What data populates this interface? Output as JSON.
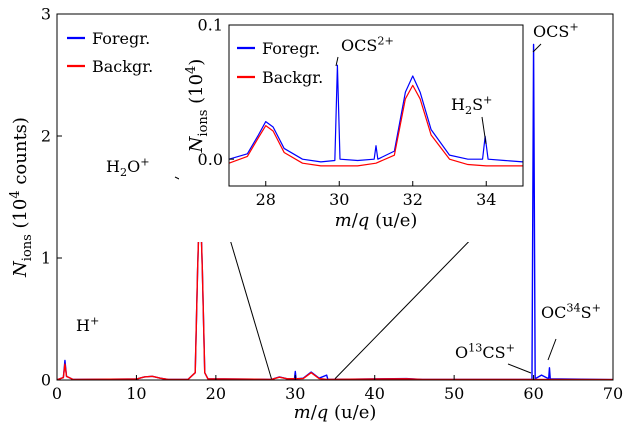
{
  "chart_data": [
    {
      "type": "line",
      "xlabel": "m/q (u/e)",
      "ylabel": "N_ions (10^4 counts)",
      "xlim": [
        0,
        70
      ],
      "ylim": [
        0,
        3
      ],
      "x_ticks": [
        "0",
        "10",
        "20",
        "30",
        "40",
        "50",
        "60",
        "70"
      ],
      "y_ticks": [
        "0",
        "1",
        "2",
        "3"
      ],
      "legend": {
        "placement": "top-left",
        "entries": [
          "Foregr.",
          "Backgr."
        ]
      },
      "colors": {
        "foreground": "#0000ff",
        "background": "#ff0000"
      },
      "series": [
        {
          "name": "Foregr.",
          "points": [
            [
              0,
              0.002
            ],
            [
              0.8,
              0.02
            ],
            [
              1,
              0.16
            ],
            [
              1.2,
              0.03
            ],
            [
              2,
              0.005
            ],
            [
              10,
              0.008
            ],
            [
              11,
              0.025
            ],
            [
              12,
              0.03
            ],
            [
              13,
              0.015
            ],
            [
              14,
              0.005
            ],
            [
              16.5,
              0.005
            ],
            [
              17.4,
              0.06
            ],
            [
              17.7,
              0.9
            ],
            [
              18,
              1.58
            ],
            [
              18.3,
              0.9
            ],
            [
              18.6,
              0.06
            ],
            [
              19,
              0.01
            ],
            [
              27,
              0.005
            ],
            [
              28,
              0.025
            ],
            [
              29,
              0.01
            ],
            [
              29.9,
              0.01
            ],
            [
              30,
              0.07
            ],
            [
              30.1,
              0.01
            ],
            [
              31,
              0.015
            ],
            [
              32,
              0.065
            ],
            [
              33,
              0.015
            ],
            [
              33.95,
              0.04
            ],
            [
              34.1,
              0.005
            ],
            [
              44,
              0.012
            ],
            [
              46,
              0.005
            ],
            [
              59.8,
              0.005
            ],
            [
              60,
              2.75
            ],
            [
              60.2,
              0.01
            ],
            [
              61,
              0.04
            ],
            [
              61.9,
              0.01
            ],
            [
              62,
              0.1
            ],
            [
              62.1,
              0.01
            ],
            [
              70,
              0.003
            ]
          ]
        },
        {
          "name": "Backgr.",
          "points": [
            [
              0,
              0.002
            ],
            [
              0.8,
              0.02
            ],
            [
              1,
              0.13
            ],
            [
              1.2,
              0.03
            ],
            [
              2,
              0.005
            ],
            [
              10,
              0.008
            ],
            [
              11,
              0.025
            ],
            [
              12,
              0.03
            ],
            [
              13,
              0.015
            ],
            [
              14,
              0.005
            ],
            [
              16.5,
              0.005
            ],
            [
              17.4,
              0.06
            ],
            [
              17.7,
              0.9
            ],
            [
              18,
              1.55
            ],
            [
              18.3,
              0.9
            ],
            [
              18.6,
              0.06
            ],
            [
              19,
              0.01
            ],
            [
              27,
              0.005
            ],
            [
              28,
              0.023
            ],
            [
              29,
              0.01
            ],
            [
              31,
              0.012
            ],
            [
              32,
              0.06
            ],
            [
              33,
              0.012
            ],
            [
              34,
              0.005
            ],
            [
              44,
              0.01
            ],
            [
              46,
              0.005
            ],
            [
              70,
              0.003
            ]
          ]
        }
      ],
      "annotations": [
        {
          "base": "H",
          "sub": "",
          "sup": "+",
          "target": [
            1,
            0.16
          ]
        },
        {
          "base": "H",
          "sub": "2",
          "post": "O",
          "sup": "+",
          "target": [
            18,
            1.58
          ]
        },
        {
          "base": "OCS",
          "sup": "+",
          "target": [
            60,
            2.75
          ]
        },
        {
          "pre": "O",
          "presup": "13",
          "base": "CS",
          "sup": "+",
          "target": [
            61,
            0.04
          ]
        },
        {
          "base": "OC",
          "midsup": "34",
          "post": "S",
          "sup": "+",
          "target": [
            62,
            0.1
          ]
        }
      ],
      "zoom_region": {
        "x": [
          27,
          35
        ]
      }
    },
    {
      "type": "line",
      "xlabel": "m/q (u/e)",
      "ylabel": "N_ions (10^4)",
      "xlim": [
        27,
        35
      ],
      "ylim": [
        -0.02,
        0.1
      ],
      "x_ticks": [
        "28",
        "30",
        "32",
        "34"
      ],
      "y_ticks": [
        "0.0",
        "0.1"
      ],
      "legend": {
        "placement": "top-left",
        "entries": [
          "Foregr.",
          "Backgr."
        ]
      },
      "series": [
        {
          "name": "Foregr.",
          "points": [
            [
              27,
              0.0
            ],
            [
              27.5,
              0.004
            ],
            [
              27.8,
              0.018
            ],
            [
              28,
              0.028
            ],
            [
              28.2,
              0.024
            ],
            [
              28.5,
              0.008
            ],
            [
              29,
              0.0
            ],
            [
              29.5,
              -0.002
            ],
            [
              29.88,
              -0.001
            ],
            [
              29.95,
              0.07
            ],
            [
              30.02,
              0.0
            ],
            [
              30.5,
              -0.001
            ],
            [
              30.95,
              0.0
            ],
            [
              31,
              0.01
            ],
            [
              31.05,
              0.0
            ],
            [
              31.5,
              0.006
            ],
            [
              31.8,
              0.05
            ],
            [
              32,
              0.062
            ],
            [
              32.2,
              0.05
            ],
            [
              32.5,
              0.022
            ],
            [
              33,
              0.003
            ],
            [
              33.5,
              0.0
            ],
            [
              33.9,
              0.0
            ],
            [
              33.97,
              0.017
            ],
            [
              34.05,
              0.0
            ],
            [
              34.5,
              -0.001
            ],
            [
              35,
              -0.002
            ]
          ]
        },
        {
          "name": "Backgr.",
          "points": [
            [
              27,
              -0.003
            ],
            [
              27.5,
              0.002
            ],
            [
              27.8,
              0.016
            ],
            [
              28,
              0.025
            ],
            [
              28.2,
              0.021
            ],
            [
              28.5,
              0.005
            ],
            [
              29,
              -0.003
            ],
            [
              29.5,
              -0.005
            ],
            [
              30,
              -0.005
            ],
            [
              30.5,
              -0.005
            ],
            [
              31,
              -0.003
            ],
            [
              31.5,
              0.003
            ],
            [
              31.8,
              0.045
            ],
            [
              32,
              0.055
            ],
            [
              32.2,
              0.045
            ],
            [
              32.5,
              0.018
            ],
            [
              33,
              0.0
            ],
            [
              33.5,
              -0.004
            ],
            [
              34,
              -0.005
            ],
            [
              34.5,
              -0.005
            ],
            [
              35,
              -0.005
            ]
          ]
        }
      ],
      "annotations": [
        {
          "base": "OCS",
          "sup": "2+",
          "target": [
            29.95,
            0.07
          ]
        },
        {
          "base": "H",
          "sub": "2",
          "post": "S",
          "sup": "+",
          "target": [
            33.97,
            0.017
          ]
        }
      ]
    }
  ]
}
